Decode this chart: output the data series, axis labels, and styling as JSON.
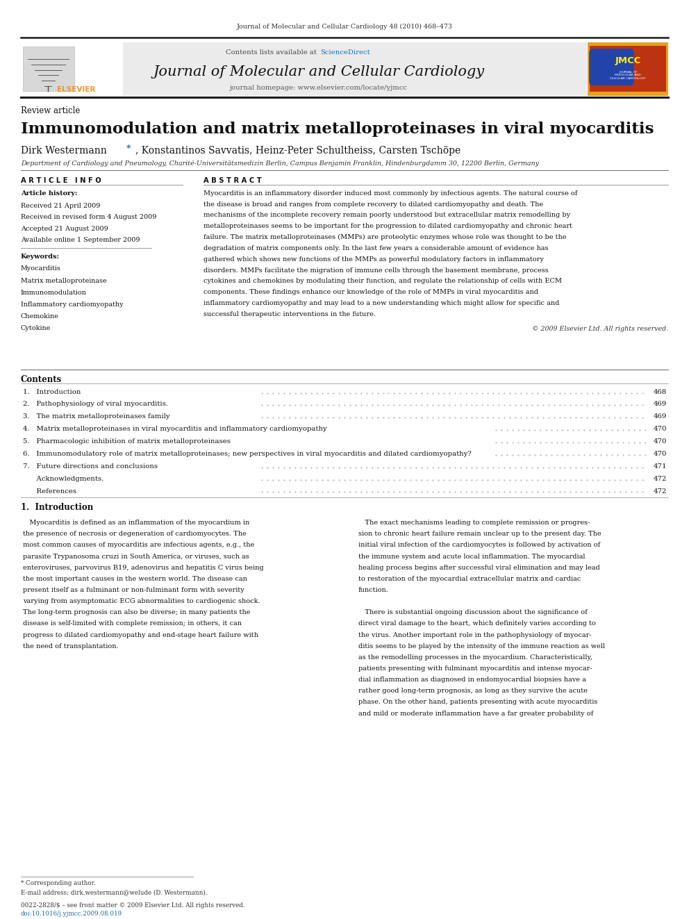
{
  "page_width": 9.92,
  "page_height": 13.23,
  "background_color": "#ffffff",
  "top_journal_ref": "Journal of Molecular and Cellular Cardiology 48 (2010) 468–473",
  "journal_name": "Journal of Molecular and Cellular Cardiology",
  "journal_homepage": "journal homepage: www.elsevier.com/locate/yjmcc",
  "contents_available": "Contents lists available at ",
  "science_direct": "ScienceDirect",
  "article_type": "Review article",
  "paper_title": "Immunomodulation and matrix metalloproteinases in viral myocarditis",
  "authors": "Dirk Westermann *, Konstantinos Savvatis, Heinz-Peter Schultheiss, Carsten Tschöpe",
  "affiliation": "Department of Cardiology and Pneumology, Charité-Universitätsmedizin Berlin, Campus Benjamin Franklin, Hindenburgdamm 30, 12200 Berlin, Germany",
  "article_info_header": "A R T I C L E   I N F O",
  "abstract_header": "A B S T R A C T",
  "article_history_label": "Article history:",
  "received": "Received 21 April 2009",
  "received_revised": "Received in revised form 4 August 2009",
  "accepted": "Accepted 21 August 2009",
  "available": "Available online 1 September 2009",
  "keywords_label": "Keywords:",
  "keywords": [
    "Myocarditis",
    "Matrix metalloproteinase",
    "Immunomodulation",
    "Inflammatory cardiomyopathy",
    "Chemokine",
    "Cytokine"
  ],
  "abstract_text": "Myocarditis is an inflammatory disorder induced most commonly by infectious agents. The natural course of\nthe disease is broad and ranges from complete recovery to dilated cardiomyopathy and death. The\nmechanisms of the incomplete recovery remain poorly understood but extracellular matrix remodelling by\nmetalloproteinases seems to be important for the progression to dilated cardiomyopathy and chronic heart\nfailure. The matrix metalloproteinases (MMPs) are proteolytic enzymes whose role was thought to be the\ndegradation of matrix components only. In the last few years a considerable amount of evidence has\ngathered which shows new functions of the MMPs as powerful modulatory factors in inflammatory\ndisorders. MMPs facilitate the migration of immune cells through the basement membrane, process\ncytokines and chemokines by modulating their function, and regulate the relationship of cells with ECM\ncomponents. These findings enhance our knowledge of the role of MMPs in viral myocarditis and\ninflammatory cardiomyopathy and may lead to a new understanding which might allow for specific and\nsuccessful therapeutic interventions in the future.",
  "copyright": "© 2009 Elsevier Ltd. All rights reserved.",
  "contents_header": "Contents",
  "contents_items": [
    [
      "1.",
      "Introduction",
      "468"
    ],
    [
      "2.",
      "Pathophysiology of viral myocarditis.",
      "469"
    ],
    [
      "3.",
      "The matrix metalloproteinases family",
      "469"
    ],
    [
      "4.",
      "Matrix metalloproteinases in viral myocarditis and inflammatory cardiomyopathy",
      "470"
    ],
    [
      "5.",
      "Pharmacologic inhibition of matrix metalloproteinases",
      "470"
    ],
    [
      "6.",
      "Immunomodulatory role of matrix metalloproteinases; new perspectives in viral myocarditis and dilated cardiomyopathy?",
      "470"
    ],
    [
      "7.",
      "Future directions and conclusions",
      "471"
    ],
    [
      "",
      "Acknowledgments.",
      "472"
    ],
    [
      "",
      "References",
      "472"
    ]
  ],
  "intro_header": "1.  Introduction",
  "intro_col1_lines": [
    "   Myocarditis is defined as an inflammation of the myocardium in",
    "the presence of necrosis or degeneration of cardiomyocytes. The",
    "most common causes of myocarditis are infectious agents, e.g., the",
    "parasite Trypanosoma cruzi in South America, or viruses, such as",
    "enteroviruses, parvovirus B19, adenovirus and hepatitis C virus being",
    "the most important causes in the western world. The disease can",
    "present itself as a fulminant or non-fulminant form with severity",
    "varying from asymptomatic ECG abnormalities to cardiogenic shock.",
    "The long-term prognosis can also be diverse; in many patients the",
    "disease is self-limited with complete remission; in others, it can",
    "progress to dilated cardiomyopathy and end-stage heart failure with",
    "the need of transplantation."
  ],
  "intro_col2_lines": [
    "   The exact mechanisms leading to complete remission or progres-",
    "sion to chronic heart failure remain unclear up to the present day. The",
    "initial viral infection of the cardiomyocytes is followed by activation of",
    "the immune system and acute local inflammation. The myocardial",
    "healing process begins after successful viral elimination and may lead",
    "to restoration of the myocardial extracellular matrix and cardiac",
    "function.",
    "",
    "   There is substantial ongoing discussion about the significance of",
    "direct viral damage to the heart, which definitely varies according to",
    "the virus. Another important role in the pathophysiology of myocar-",
    "ditis seems to be played by the intensity of the immune reaction as well",
    "as the remodelling processes in the myocardium. Characteristically,",
    "patients presenting with fulminant myocarditis and intense myocar-",
    "dial inflammation as diagnosed in endomyocardial biopsies have a",
    "rather good long-term prognosis, as long as they survive the acute",
    "phase. On the other hand, patients presenting with acute myocarditis",
    "and mild or moderate inflammation have a far greater probability of"
  ],
  "footnote_star": "* Corresponding author.",
  "footnote_email": "E-mail address: dirk.westermann@welude (D. Westermann).",
  "footnote_issn": "0022-2828/$ – see front matter © 2009 Elsevier Ltd. All rights reserved.",
  "footnote_doi": "doi:10.1016/j.yjmcc.2009.08.019",
  "science_direct_color": "#1a6ea8",
  "elsevier_text_color": "#f7941d",
  "thick_rule_color": "#1a1a1a",
  "thin_rule_color": "#888888"
}
